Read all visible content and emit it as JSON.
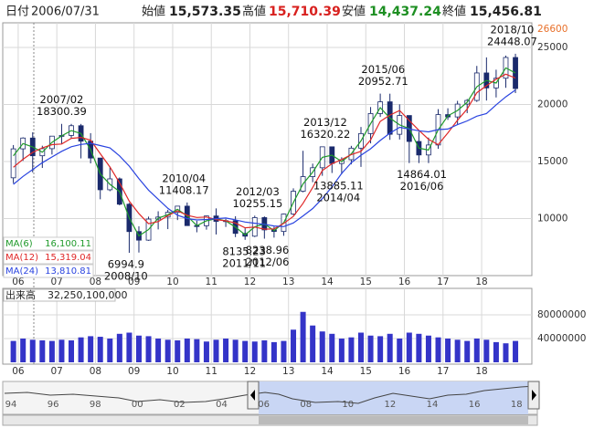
{
  "header": {
    "date_label": "日付",
    "date": "2006/07/31",
    "open_label": "始値",
    "open": "15,573.35",
    "high_label": "高値",
    "high": "15,710.39",
    "low_label": "安値",
    "low": "14,437.24",
    "close_label": "終値",
    "close": "15,456.81"
  },
  "chart_data": {
    "type": "candlestick",
    "x": [
      2005.875,
      2006.125,
      2006.375,
      2006.625,
      2006.875,
      2007.125,
      2007.375,
      2007.625,
      2007.875,
      2008.125,
      2008.375,
      2008.625,
      2008.875,
      2009.125,
      2009.375,
      2009.625,
      2009.875,
      2010.125,
      2010.375,
      2010.625,
      2010.875,
      2011.125,
      2011.375,
      2011.625,
      2011.875,
      2012.125,
      2012.375,
      2012.625,
      2012.875,
      2013.125,
      2013.375,
      2013.625,
      2013.875,
      2014.125,
      2014.375,
      2014.625,
      2014.875,
      2015.125,
      2015.375,
      2015.625,
      2015.875,
      2016.125,
      2016.375,
      2016.625,
      2016.875,
      2017.125,
      2017.375,
      2017.625,
      2017.875,
      2018.125,
      2018.375,
      2018.625,
      2018.875
    ],
    "open": [
      13574,
      16111,
      17059,
      15505,
      16127,
      17225,
      17287,
      18138,
      16785,
      15307,
      12525,
      13481,
      11259,
      8859,
      8109,
      9958,
      10133,
      10546,
      11089,
      9382,
      9369,
      10228,
      9755,
      9816,
      8700,
      8455,
      10083,
      9006,
      8870,
      10395,
      12397,
      13677,
      14455,
      16291,
      14827,
      15162,
      16173,
      17450,
      19206,
      20235,
      17388,
      19033,
      16758,
      15575,
      16449,
      19114,
      18909,
      20033,
      20356,
      22764,
      21454,
      22304,
      24120
    ],
    "high": [
      16445,
      17125,
      17563,
      16385,
      17225,
      18300,
      18297,
      18295,
      17488,
      15307,
      14489,
      13603,
      11368,
      9325,
      10170,
      10639,
      10767,
      11097,
      11408,
      9806,
      10254,
      10891,
      9972,
      10207,
      9152,
      10255,
      10190,
      9288,
      10433,
      12650,
      15942,
      14817,
      16320,
      16291,
      15376,
      16374,
      18030,
      19778,
      20952,
      20946,
      20012,
      19033,
      17613,
      17099,
      19592,
      19668,
      20318,
      20481,
      23382,
      24129,
      23050,
      24286,
      24448
    ],
    "low": [
      13100,
      15059,
      14045,
      14437,
      15615,
      16532,
      17028,
      15273,
      14837,
      11691,
      12400,
      11160,
      6995,
      7021,
      8050,
      9050,
      9076,
      9867,
      9382,
      8796,
      9027,
      8605,
      9265,
      8374,
      8135,
      8378,
      8238,
      8328,
      8488,
      10300,
      12300,
      13188,
      13748,
      13995,
      13885,
      14753,
      14529,
      16592,
      18909,
      16901,
      16930,
      14865,
      14864,
      14864,
      16111,
      18650,
      18224,
      19239,
      20225,
      20347,
      20617,
      21462,
      21000
    ],
    "close": [
      16111,
      17059,
      15505,
      16127,
      17225,
      17287,
      18138,
      16785,
      15307,
      12525,
      13481,
      11259,
      8859,
      8109,
      9958,
      10133,
      10546,
      11089,
      9382,
      9369,
      10228,
      9755,
      9816,
      8700,
      8455,
      10083,
      9006,
      8870,
      10395,
      12397,
      13677,
      14455,
      16291,
      14827,
      15162,
      16173,
      17450,
      19206,
      20235,
      17388,
      19033,
      16758,
      15575,
      16449,
      19114,
      18909,
      20033,
      20356,
      22764,
      21454,
      22304,
      24120,
      21400
    ],
    "up_color": "#ffffff",
    "down_color": "#1a2a6c",
    "candle_stroke": "#1a2a6c",
    "series": [
      {
        "name": "MA(6)",
        "color": "#1f9a2a",
        "legend_value": "16,100.11",
        "values": [
          15500,
          16580,
          16280,
          15820,
          16680,
          17250,
          17710,
          17460,
          16050,
          13920,
          13000,
          12370,
          10060,
          8480,
          9030,
          10040,
          10340,
          10820,
          10230,
          9380,
          9800,
          9990,
          9790,
          9260,
          8580,
          9270,
          9540,
          8940,
          9630,
          11400,
          13040,
          14070,
          15370,
          15560,
          14990,
          15670,
          16810,
          18330,
          19720,
          18810,
          18210,
          17900,
          16170,
          16010,
          17780,
          19010,
          19470,
          20190,
          21560,
          22110,
          21880,
          23210,
          22760
        ]
      },
      {
        "name": "MA(12)",
        "color": "#e02828",
        "legend_value": "15,319.04",
        "values": [
          14500,
          15200,
          15800,
          16200,
          16480,
          16540,
          17030,
          17110,
          16880,
          15690,
          14520,
          13140,
          11530,
          10430,
          9550,
          9740,
          10250,
          10680,
          10290,
          10100,
          10140,
          9910,
          9800,
          9620,
          9190,
          9260,
          9070,
          9100,
          9580,
          10190,
          11340,
          12730,
          14210,
          14810,
          15180,
          15610,
          15900,
          16900,
          18520,
          19070,
          19470,
          18600,
          17740,
          16950,
          16480,
          17510,
          18620,
          19600,
          21030,
          21640,
          22220,
          22660,
          22320
        ]
      },
      {
        "name": "MA(24)",
        "color": "#2a44e0",
        "legend_value": "13,810.81",
        "values": [
          13000,
          13700,
          14300,
          14900,
          15400,
          15900,
          16300,
          16500,
          16600,
          16400,
          16200,
          15500,
          14600,
          13500,
          12500,
          11700,
          10900,
          10300,
          10000,
          9880,
          9920,
          9990,
          10050,
          9890,
          9700,
          9590,
          9500,
          9350,
          9300,
          9620,
          10230,
          10880,
          11750,
          12780,
          13960,
          14900,
          15550,
          16120,
          16850,
          17490,
          18000,
          17850,
          17700,
          17600,
          17800,
          17850,
          18230,
          18560,
          18980,
          19200,
          19970,
          20670,
          21270
        ]
      }
    ],
    "xlim": [
      2005.6,
      2019.3
    ],
    "ylim": [
      5000,
      27000
    ],
    "yticks": [
      10000,
      15000,
      20000,
      25000
    ],
    "high_marker": 26600,
    "xticks": [
      {
        "value": 2006,
        "label": "06"
      },
      {
        "value": 2007,
        "label": "07"
      },
      {
        "value": 2008,
        "label": "08"
      },
      {
        "value": 2009,
        "label": "09"
      },
      {
        "value": 2010,
        "label": "10"
      },
      {
        "value": 2011,
        "label": "11"
      },
      {
        "value": 2012,
        "label": "12"
      },
      {
        "value": 2013,
        "label": "13"
      },
      {
        "value": 2014,
        "label": "14"
      },
      {
        "value": 2015,
        "label": "15"
      },
      {
        "value": 2016,
        "label": "16"
      },
      {
        "value": 2017,
        "label": "17"
      },
      {
        "value": 2018,
        "label": "18"
      }
    ],
    "grid": true,
    "annotations": [
      {
        "date": "2007/02",
        "value": 18300.39,
        "x": 2007.125,
        "position": "above"
      },
      {
        "date": "2008/10",
        "value": 6994.9,
        "x": 2008.79,
        "position": "below"
      },
      {
        "date": "2010/04",
        "value": 11408.17,
        "x": 2010.29,
        "position": "above"
      },
      {
        "date": "2012/03",
        "value": 10255.15,
        "x": 2012.2,
        "position": "above"
      },
      {
        "date": "2011/11",
        "value": 8135.23,
        "x": 2011.85,
        "position": "below"
      },
      {
        "date": "2012/06",
        "value": 8238.96,
        "x": 2012.45,
        "position": "below"
      },
      {
        "date": "2013/12",
        "value": 16320.22,
        "x": 2013.95,
        "position": "above"
      },
      {
        "date": "2014/04",
        "value": 13885.11,
        "x": 2014.29,
        "position": "below"
      },
      {
        "date": "2015/06",
        "value": 20952.71,
        "x": 2015.45,
        "position": "above"
      },
      {
        "date": "2016/06",
        "value": 14864.01,
        "x": 2016.45,
        "position": "below"
      },
      {
        "date": "2018/10",
        "value": 24448.07,
        "x": 2018.79,
        "position": "above"
      }
    ],
    "volume": {
      "title": "出来高",
      "readout": "32,250,100,000",
      "color": "#3434c8",
      "values": [
        36000000,
        40000000,
        38000000,
        37000000,
        36000000,
        38000000,
        37000000,
        42000000,
        44000000,
        43000000,
        40000000,
        48000000,
        50000000,
        45000000,
        44000000,
        40000000,
        38000000,
        37000000,
        40000000,
        39000000,
        35000000,
        38000000,
        40000000,
        38000000,
        36000000,
        35000000,
        37000000,
        34000000,
        36000000,
        55000000,
        85000000,
        62000000,
        52000000,
        48000000,
        40000000,
        42000000,
        50000000,
        45000000,
        44000000,
        48000000,
        40000000,
        50000000,
        48000000,
        45000000,
        42000000,
        40000000,
        38000000,
        36000000,
        40000000,
        38000000,
        34000000,
        32000000,
        36000000
      ],
      "ylim": [
        0,
        120000000
      ],
      "yticks": [
        40000000,
        80000000
      ]
    }
  },
  "navigator": {
    "labels": [
      "94",
      "96",
      "98",
      "00",
      "02",
      "04",
      "06",
      "08",
      "10",
      "12",
      "14",
      "16",
      "18"
    ]
  }
}
